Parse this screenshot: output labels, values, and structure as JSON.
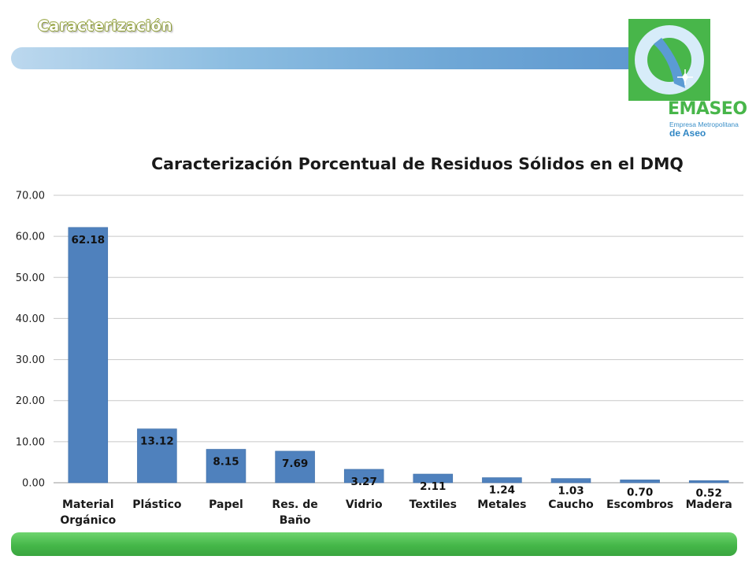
{
  "slide": {
    "title": "Caracterización"
  },
  "logo": {
    "name": "EMASEO",
    "line1": "Empresa Metropolitana",
    "line2": "de Aseo",
    "green": "#48b64a",
    "blue": "#2f86c4"
  },
  "colors": {
    "bar": "#4f81bd",
    "top_bar": "#6fa7d6",
    "bottom_bar": "#45b749"
  },
  "chart_data": {
    "type": "bar",
    "title": "Caracterización Porcentual de Residuos Sólidos en el DMQ",
    "categories": [
      [
        "Material",
        "Orgánico"
      ],
      [
        "Plástico"
      ],
      [
        "Papel"
      ],
      [
        "Res. de",
        "Baño"
      ],
      [
        "Vidrio"
      ],
      [
        "Textiles"
      ],
      [
        "Metales"
      ],
      [
        "Caucho"
      ],
      [
        "Escombros"
      ],
      [
        "Madera"
      ]
    ],
    "values": [
      62.18,
      13.12,
      8.15,
      7.69,
      3.27,
      2.11,
      1.24,
      1.03,
      0.7,
      0.52
    ],
    "data_labels": [
      "62.18",
      "13.12",
      "8.15",
      "7.69",
      "3.27",
      "2.11",
      "1.24",
      "1.03",
      "0.70",
      "0.52"
    ],
    "ylim": [
      0,
      70
    ],
    "yticks": [
      "0.00",
      "10.00",
      "20.00",
      "30.00",
      "40.00",
      "50.00",
      "60.00",
      "70.00"
    ],
    "grid": true,
    "legend": "none"
  }
}
